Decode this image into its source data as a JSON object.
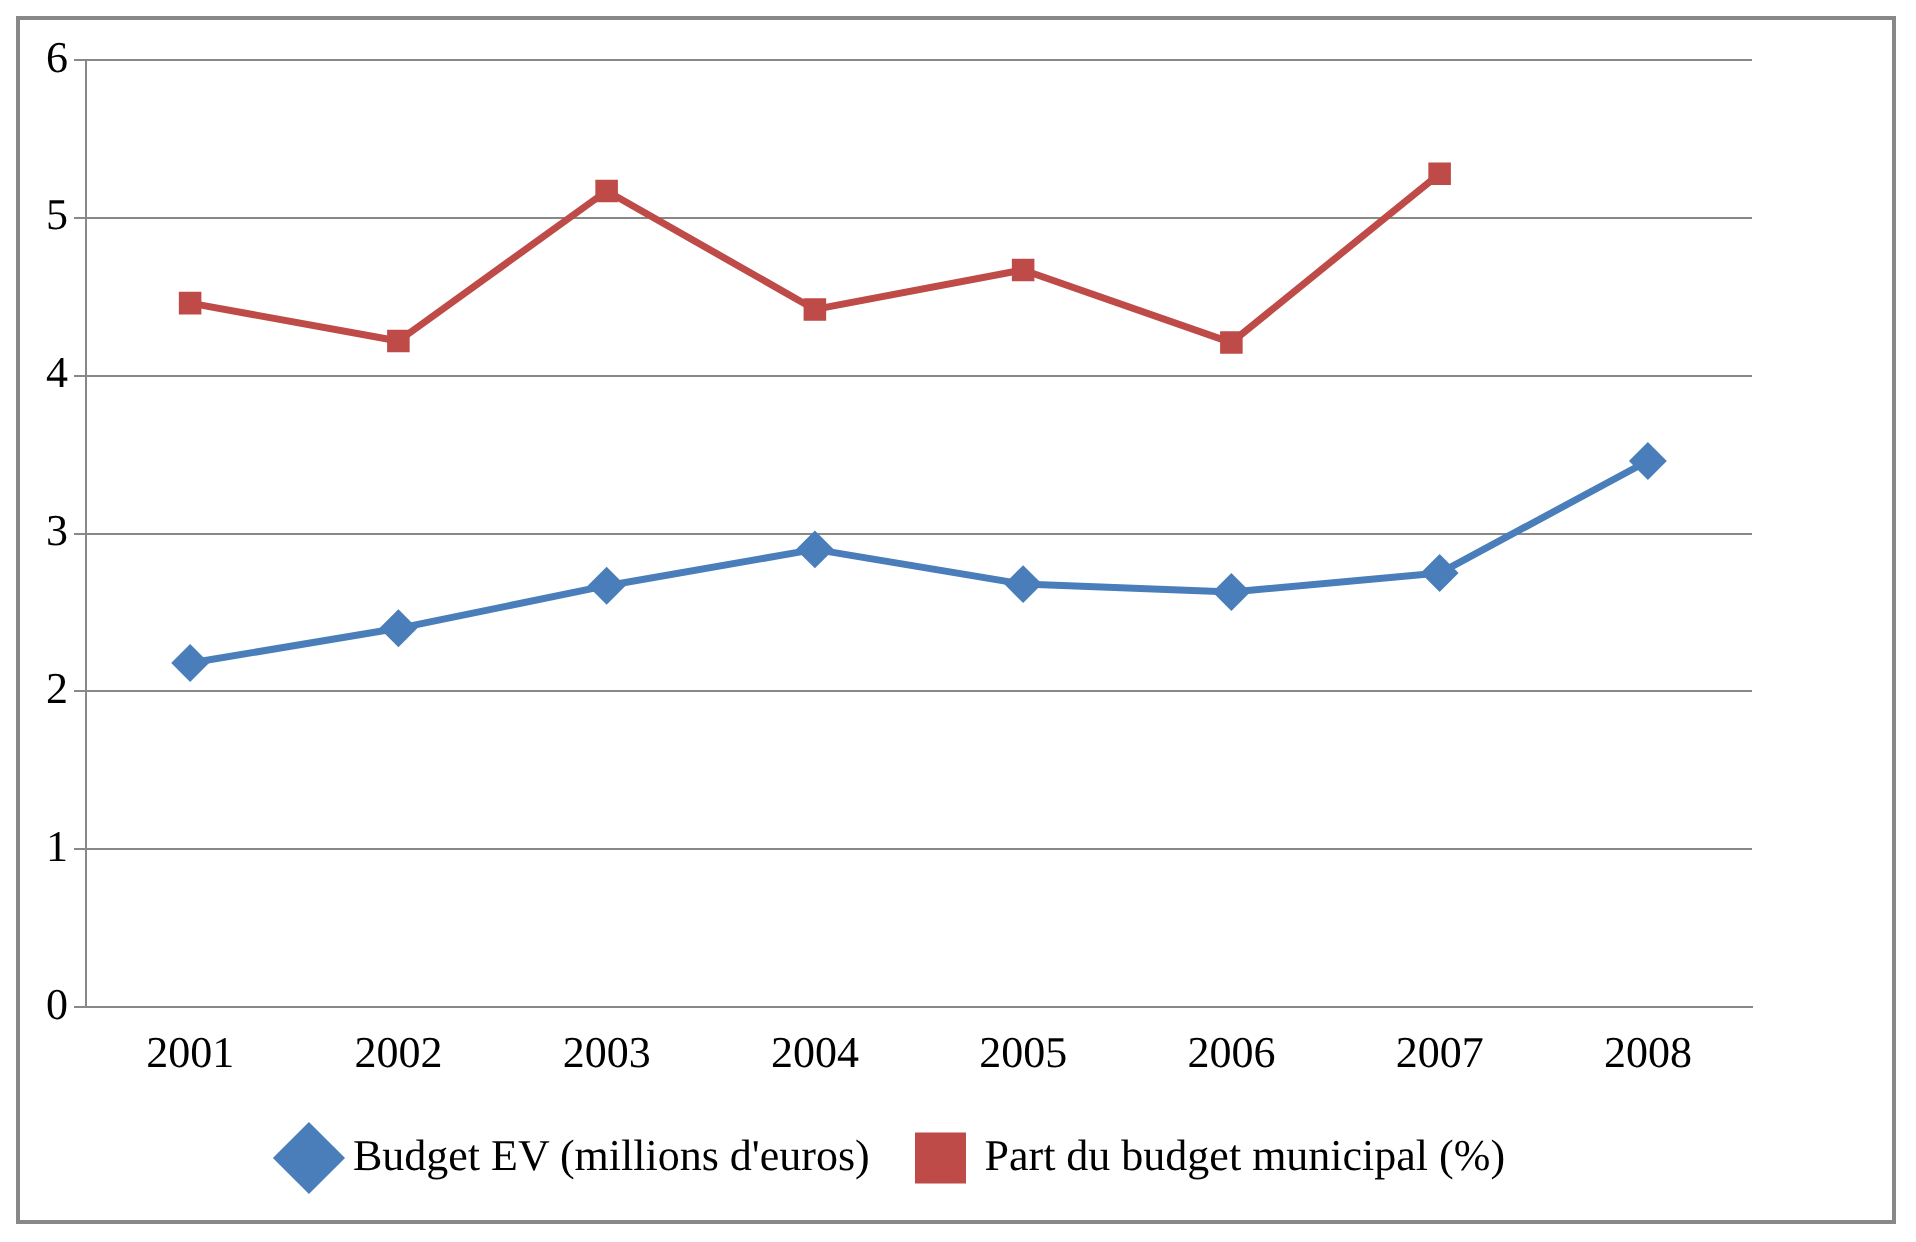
{
  "chart_data": {
    "type": "line",
    "categories": [
      "2001",
      "2002",
      "2003",
      "2004",
      "2005",
      "2006",
      "2007",
      "2008"
    ],
    "series": [
      {
        "name": "Budget EV (millions d'euros)",
        "color": "#4a7ebb",
        "marker": "diamond",
        "values": [
          2.18,
          2.4,
          2.67,
          2.9,
          2.68,
          2.63,
          2.75,
          3.46
        ]
      },
      {
        "name": "Part du budget municipal (%)",
        "color": "#be4b48",
        "marker": "square",
        "values": [
          4.46,
          4.22,
          5.17,
          4.42,
          4.67,
          4.21,
          5.28,
          null
        ]
      }
    ],
    "ylim": [
      0,
      6
    ],
    "yticks": [
      0,
      1,
      2,
      3,
      4,
      5,
      6
    ],
    "grid": "y",
    "legend": "bottom"
  }
}
